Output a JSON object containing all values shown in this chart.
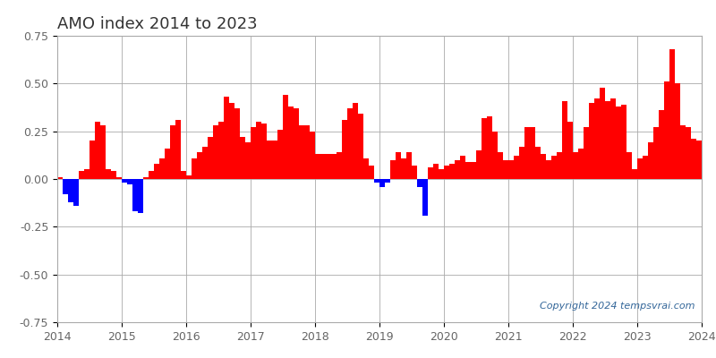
{
  "title": "AMO index 2014 to 2023",
  "title_fontsize": 13,
  "title_color": "#333333",
  "xlim": [
    2014,
    2024
  ],
  "ylim": [
    -0.75,
    0.75
  ],
  "yticks": [
    -0.75,
    -0.5,
    -0.25,
    0.0,
    0.25,
    0.5,
    0.75
  ],
  "ytick_labels": [
    "-0.75",
    "-0.50",
    "-0.25",
    "0.00",
    "0.25",
    "0.50",
    "0.75"
  ],
  "xticks": [
    2014,
    2015,
    2016,
    2017,
    2018,
    2019,
    2020,
    2021,
    2022,
    2023,
    2024
  ],
  "copyright_text": "Copyright 2024 tempsvrai.com",
  "copyright_color": "#336699",
  "background_color": "#ffffff",
  "grid_color": "#aaaaaa",
  "positive_color": "#ff0000",
  "negative_color": "#0000ff",
  "monthly_values": [
    0.01,
    -0.08,
    -0.12,
    -0.14,
    0.04,
    0.05,
    0.2,
    0.3,
    0.28,
    0.05,
    0.04,
    0.01,
    -0.02,
    -0.03,
    -0.17,
    -0.18,
    0.01,
    0.04,
    0.08,
    0.11,
    0.16,
    0.28,
    0.31,
    0.04,
    0.02,
    0.11,
    0.14,
    0.17,
    0.22,
    0.28,
    0.3,
    0.43,
    0.4,
    0.37,
    0.22,
    0.19,
    0.27,
    0.3,
    0.29,
    0.2,
    0.2,
    0.26,
    0.44,
    0.38,
    0.37,
    0.28,
    0.28,
    0.25,
    0.13,
    0.13,
    0.13,
    0.13,
    0.14,
    0.31,
    0.37,
    0.4,
    0.34,
    0.11,
    0.07,
    -0.02,
    -0.04,
    -0.02,
    0.1,
    0.14,
    0.11,
    0.14,
    0.07,
    -0.04,
    -0.19,
    0.06,
    0.08,
    0.05,
    0.07,
    0.08,
    0.1,
    0.12,
    0.09,
    0.09,
    0.15,
    0.32,
    0.33,
    0.25,
    0.14,
    0.1,
    0.1,
    0.12,
    0.17,
    0.27,
    0.27,
    0.17,
    0.13,
    0.1,
    0.12,
    0.14,
    0.41,
    0.3,
    0.14,
    0.16,
    0.27,
    0.4,
    0.42,
    0.48,
    0.41,
    0.42,
    0.38,
    0.39,
    0.14,
    0.05,
    0.11,
    0.12,
    0.19,
    0.27,
    0.36,
    0.51,
    0.68,
    0.5,
    0.28,
    0.27,
    0.21,
    0.2
  ],
  "start_year": 2014,
  "start_month": 1,
  "figwidth": 8.0,
  "figheight": 4.0,
  "dpi": 100
}
